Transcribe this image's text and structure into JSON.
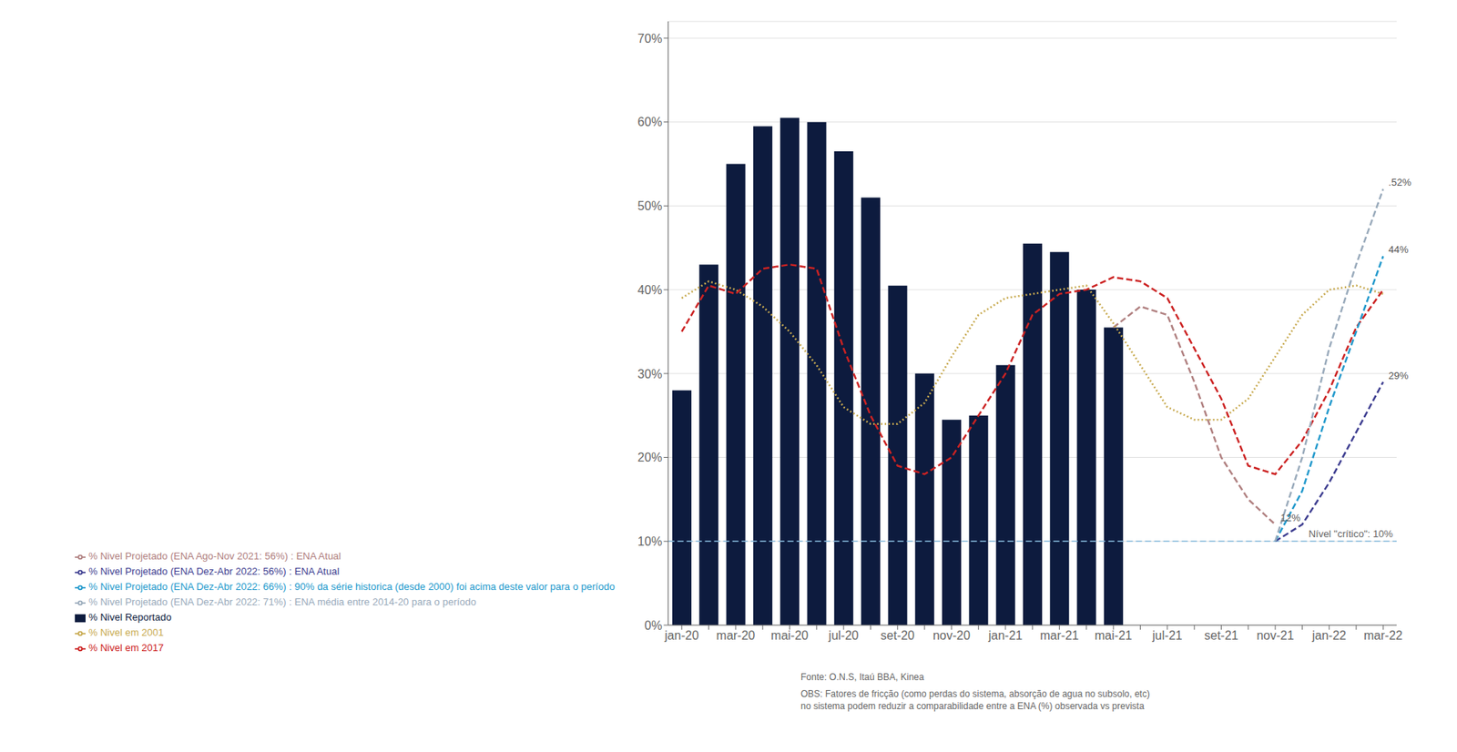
{
  "chart_data": {
    "type": "bar",
    "categories": [
      "jan-20",
      null,
      "mar-20",
      null,
      "mai-20",
      null,
      "jul-20",
      null,
      "set-20",
      null,
      "nov-20",
      null,
      "jan-21",
      null,
      "mar-21",
      null,
      "mai-21",
      null,
      "jul-21",
      null,
      "set-21",
      null,
      "nov-21",
      null,
      "jan-22",
      null,
      "mar-22"
    ],
    "series": [
      {
        "name": "% Nivel Reportado",
        "type": "bar",
        "color": "#0d1b3e",
        "values": [
          28,
          43,
          55,
          59.5,
          60.5,
          60,
          56.5,
          51,
          40.5,
          30,
          24.5,
          25,
          31,
          45.5,
          44.5,
          40,
          35.5,
          null,
          null,
          null,
          null,
          null,
          null,
          null,
          null,
          null,
          null
        ]
      },
      {
        "name": "% Nivel Projetado (ENA Ago-Nov 2021: 56%) :  ENA Atual",
        "type": "line",
        "color": "#b08080",
        "line_style": "dashed",
        "values": [
          null,
          null,
          null,
          null,
          null,
          null,
          null,
          null,
          null,
          null,
          null,
          null,
          null,
          null,
          null,
          null,
          35.5,
          38,
          37,
          29,
          20,
          15,
          12,
          null,
          null,
          null,
          null
        ]
      },
      {
        "name": "% Nivel em 2001",
        "type": "line",
        "color": "#c8aa50",
        "line_style": "dotted",
        "values": [
          39,
          41,
          40,
          38,
          35,
          31,
          26,
          24,
          24,
          26.5,
          32,
          37,
          39,
          39.5,
          40,
          40.5,
          36,
          31,
          26,
          24.5,
          24.5,
          27,
          32,
          37,
          40,
          40.5,
          39.5
        ]
      },
      {
        "name": "% Nivel em 2017",
        "type": "line",
        "color": "#cc2222",
        "line_style": "dashed",
        "values": [
          35,
          40.5,
          39.5,
          42.5,
          43,
          42.5,
          33,
          25,
          19,
          18,
          20,
          25,
          30,
          37,
          39.5,
          40,
          41.5,
          41,
          39,
          33,
          27,
          19,
          18,
          22,
          28,
          35.5,
          40
        ]
      },
      {
        "name": "% Nivel Projetado (ENA Dez-Abr 2022: 56%) : ENA Atual",
        "type": "line",
        "color": "#3d3d90",
        "line_style": "dashed",
        "values": [
          null,
          null,
          null,
          null,
          null,
          null,
          null,
          null,
          null,
          null,
          null,
          null,
          null,
          null,
          null,
          null,
          null,
          null,
          null,
          null,
          null,
          null,
          10,
          12,
          17,
          23,
          29
        ]
      },
      {
        "name": "% Nivel Projetado (ENA Dez-Abr 2022: 66%) : 90% da série historica (desde 2000) foi acima deste valor para o período",
        "type": "line",
        "color": "#2299cc",
        "line_style": "dashed",
        "values": [
          null,
          null,
          null,
          null,
          null,
          null,
          null,
          null,
          null,
          null,
          null,
          null,
          null,
          null,
          null,
          null,
          null,
          null,
          null,
          null,
          null,
          null,
          10,
          16,
          26,
          35,
          44
        ]
      },
      {
        "name": "% Nivel Projetado (ENA Dez-Abr 2022: 71%) : ENA média entre 2014-20 para o período",
        "type": "line",
        "color": "#99aabb",
        "line_style": "dashed",
        "values": [
          null,
          null,
          null,
          null,
          null,
          null,
          null,
          null,
          null,
          null,
          null,
          null,
          null,
          null,
          null,
          null,
          null,
          null,
          null,
          null,
          null,
          null,
          10,
          20,
          33,
          43,
          52
        ]
      }
    ],
    "annotations": [
      {
        "text": "12%",
        "series": "% Nivel Projetado (ENA Ago-Nov 2021: 56%) :  ENA Atual"
      },
      {
        "text": "29%",
        "series": "% Nivel Projetado (ENA Dez-Abr 2022: 56%) : ENA Atual"
      },
      {
        "text": "44%",
        "series": "% Nivel Projetado (ENA Dez-Abr 2022: 66%) : 90% da série historica (desde 2000) foi acima deste valor para o período"
      },
      {
        "text": ".52%",
        "series": "% Nivel Projetado (ENA Dez-Abr 2022: 71%) : ENA média entre 2014-20 para o período"
      }
    ],
    "hlines": [
      {
        "y": 10,
        "label": "Nível \"crítico\": 10%",
        "color": "#88bbdd",
        "line_style": "dashed"
      }
    ],
    "ylim": [
      0,
      72
    ],
    "yticks": [
      {
        "value": 0,
        "label": "0%"
      },
      {
        "value": 10,
        "label": "10%"
      },
      {
        "value": 20,
        "label": "20%"
      },
      {
        "value": 30,
        "label": "30%"
      },
      {
        "value": 40,
        "label": "40%"
      },
      {
        "value": 50,
        "label": "50%"
      },
      {
        "value": 60,
        "label": "60%"
      },
      {
        "value": 70,
        "label": "70%"
      }
    ],
    "grid": true,
    "legend": "bottom",
    "footnotes": [
      "Fonte: O.N.S, Itaú BBA, Kinea",
      "OBS: Fatores de fricção (como perdas do sistema, absorção de agua no subsolo, etc)\nno sistema podem reduzir a comparabilidade entre a ENA (%) observada vs prevista"
    ]
  }
}
